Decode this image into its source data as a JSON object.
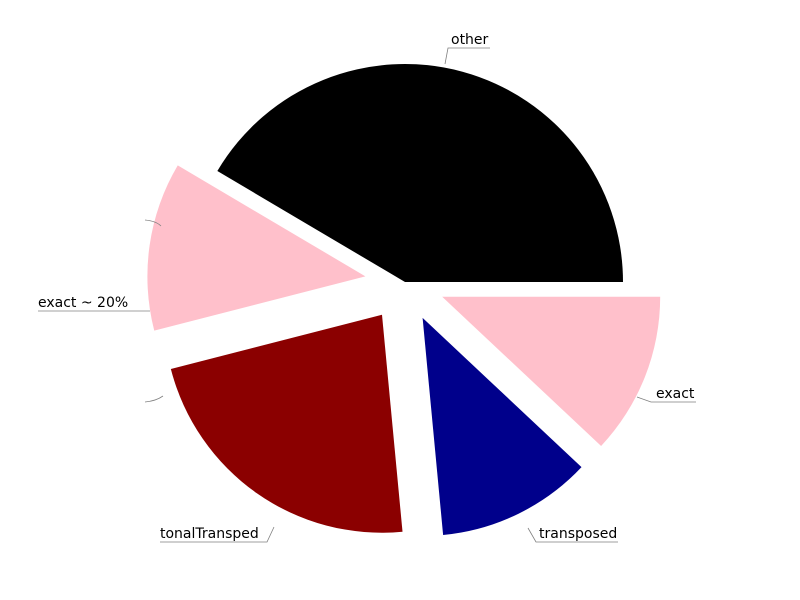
{
  "chart_data": {
    "type": "pie",
    "labels": [
      "other",
      "exact ~ 20%",
      "tonalTransped",
      "transposed",
      "exact"
    ],
    "values": [
      41.5,
      12.5,
      22.5,
      11.5,
      12.0
    ],
    "colors": [
      "#000000",
      "#ffc0cb",
      "#8b0000",
      "#00008b",
      "#ffc0cb"
    ],
    "exploded": [
      false,
      true,
      true,
      true,
      true
    ],
    "start_angle_deg": 0,
    "direction": "counterclockwise"
  }
}
